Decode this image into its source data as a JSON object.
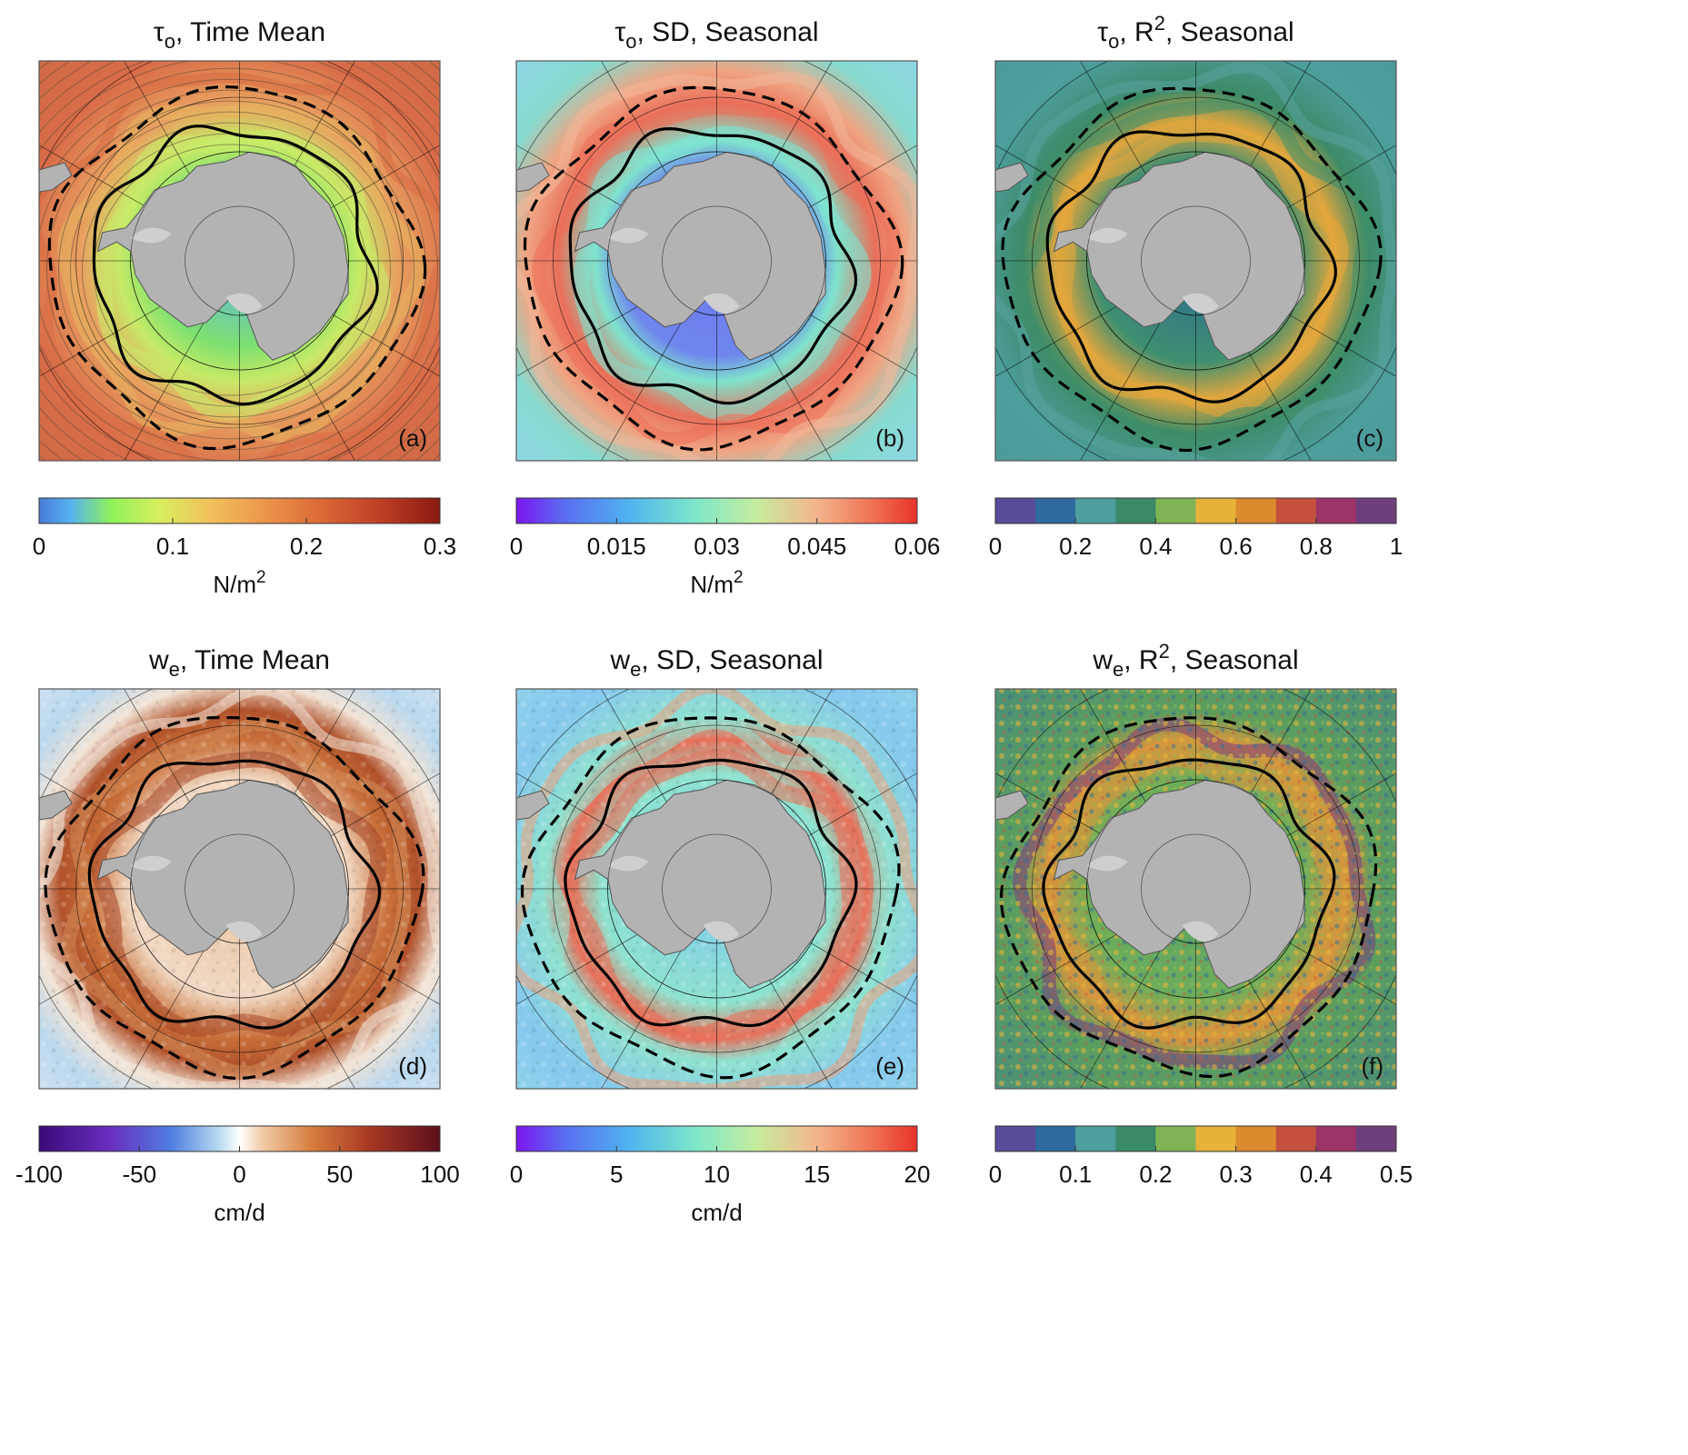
{
  "figure": {
    "panels": [
      {
        "label": "(a)",
        "title_sym": "τ",
        "title_sub": "o",
        "title_rest": ", Time Mean",
        "title_sup": "",
        "title_tail": "",
        "colormap": "turbo_like",
        "style": "mean_tau"
      },
      {
        "label": "(b)",
        "title_sym": "τ",
        "title_sub": "o",
        "title_rest": ", SD, Seasonal",
        "title_sup": "",
        "title_tail": "",
        "colormap": "rainbow",
        "style": "sd_tau"
      },
      {
        "label": "(c)",
        "title_sym": "τ",
        "title_sub": "o",
        "title_rest": ", R",
        "title_sup": "2",
        "title_tail": ", Seasonal",
        "colormap": "discrete",
        "style": "r2_tau"
      },
      {
        "label": "(d)",
        "title_sym": "w",
        "title_sub": "e",
        "title_rest": ", Time Mean",
        "title_sup": "",
        "title_tail": "",
        "colormap": "diverging",
        "style": "mean_we"
      },
      {
        "label": "(e)",
        "title_sym": "w",
        "title_sub": "e",
        "title_rest": ", SD, Seasonal",
        "title_sup": "",
        "title_tail": "",
        "colormap": "rainbow",
        "style": "sd_we"
      },
      {
        "label": "(f)",
        "title_sym": "w",
        "title_sub": "e",
        "title_rest": ", R",
        "title_sup": "2",
        "title_tail": ", Seasonal",
        "colormap": "discrete",
        "style": "r2_we"
      }
    ],
    "colorbars": [
      {
        "ticks": [
          "0",
          "0.1",
          "0.2",
          "0.3"
        ],
        "unit": "N/m",
        "unit_sup": "2"
      },
      {
        "ticks": [
          "0",
          "0.015",
          "0.03",
          "0.045",
          "0.06"
        ],
        "unit": "N/m",
        "unit_sup": "2"
      },
      {
        "ticks": [
          "0",
          "0.2",
          "0.4",
          "0.6",
          "0.8",
          "1"
        ],
        "unit": "",
        "unit_sup": ""
      },
      {
        "ticks": [
          "-100",
          "-50",
          "0",
          "50",
          "100"
        ],
        "unit": "cm/d",
        "unit_sup": ""
      },
      {
        "ticks": [
          "0",
          "5",
          "10",
          "15",
          "20"
        ],
        "unit": "cm/d",
        "unit_sup": ""
      },
      {
        "ticks": [
          "0",
          "0.1",
          "0.2",
          "0.3",
          "0.4",
          "0.5"
        ],
        "unit": "",
        "unit_sup": ""
      }
    ]
  },
  "chart_data": [
    {
      "type": "heatmap",
      "title": "τo, Time Mean",
      "colorbar_range": [
        0,
        0.3
      ],
      "colorbar_units": "N/m2",
      "overlay": "wind stress streamlines",
      "contours": [
        "sea-ice edge (solid)",
        "maximum sea-ice extent (dashed)"
      ]
    },
    {
      "type": "heatmap",
      "title": "τo, SD, Seasonal",
      "colorbar_range": [
        0,
        0.06
      ],
      "colorbar_units": "N/m2"
    },
    {
      "type": "heatmap",
      "title": "τo, R2, Seasonal",
      "colorbar_range": [
        0,
        1
      ],
      "levels": 10
    },
    {
      "type": "heatmap",
      "title": "we, Time Mean",
      "colorbar_range": [
        -100,
        100
      ],
      "colorbar_units": "cm/d"
    },
    {
      "type": "heatmap",
      "title": "we, SD, Seasonal",
      "colorbar_range": [
        0,
        20
      ],
      "colorbar_units": "cm/d"
    },
    {
      "type": "heatmap",
      "title": "we, R2, Seasonal",
      "colorbar_range": [
        0,
        0.5
      ],
      "levels": 10
    }
  ],
  "colors": {
    "land": "#b3b3b3",
    "ice_shelf": "#cfcfcf",
    "contour": "#000000"
  }
}
